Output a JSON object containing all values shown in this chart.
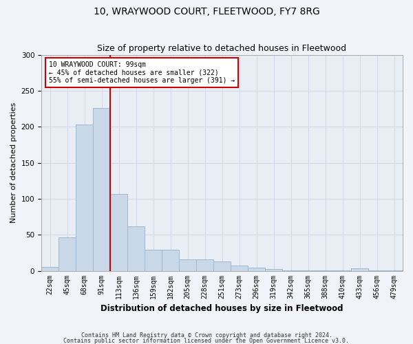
{
  "title": "10, WRAYWOOD COURT, FLEETWOOD, FY7 8RG",
  "subtitle": "Size of property relative to detached houses in Fleetwood",
  "xlabel": "Distribution of detached houses by size in Fleetwood",
  "ylabel": "Number of detached properties",
  "bar_values": [
    5,
    46,
    203,
    226,
    107,
    62,
    29,
    29,
    16,
    16,
    13,
    7,
    4,
    2,
    1,
    1,
    1,
    1,
    3,
    1,
    1
  ],
  "bar_labels": [
    "22sqm",
    "45sqm",
    "68sqm",
    "91sqm",
    "113sqm",
    "136sqm",
    "159sqm",
    "182sqm",
    "205sqm",
    "228sqm",
    "251sqm",
    "273sqm",
    "296sqm",
    "319sqm",
    "342sqm",
    "365sqm",
    "388sqm",
    "410sqm",
    "433sqm",
    "456sqm",
    "479sqm"
  ],
  "bar_color": "#c8d8e8",
  "bar_edge_color": "#a0b8cc",
  "property_line_x": 3.5,
  "property_line_color": "#cc0000",
  "annotation_text": "10 WRAYWOOD COURT: 99sqm\n← 45% of detached houses are smaller (322)\n55% of semi-detached houses are larger (391) →",
  "annotation_box_color": "#ffffff",
  "annotation_box_edge_color": "#cc0000",
  "ylim": [
    0,
    300
  ],
  "yticks": [
    0,
    50,
    100,
    150,
    200,
    250,
    300
  ],
  "footnote1": "Contains HM Land Registry data © Crown copyright and database right 2024.",
  "footnote2": "Contains public sector information licensed under the Open Government Licence v3.0.",
  "grid_color": "#d0d8e8",
  "background_color": "#e8eef4",
  "fig_bg_color": "#f0f4f8"
}
